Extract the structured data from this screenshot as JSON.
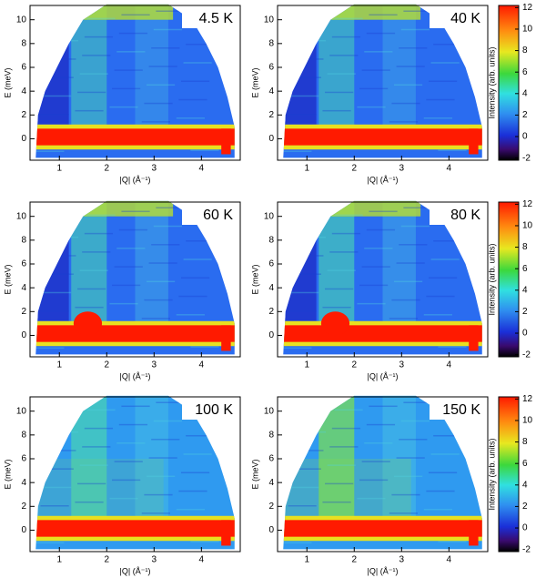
{
  "chart_data": [
    {
      "type": "heatmap",
      "title": "4.5 K",
      "xlabel": "|Q| (Å⁻¹)",
      "ylabel": "E (meV)",
      "xlim": [
        0.38,
        4.82
      ],
      "ylim": [
        -1.8,
        11.2
      ],
      "xticks": [
        1,
        2,
        3,
        4
      ],
      "yticks": [
        0,
        2,
        4,
        6,
        8,
        10
      ]
    },
    {
      "type": "heatmap",
      "title": "40 K",
      "xlabel": "|Q| (Å⁻¹)",
      "ylabel": "E (meV)",
      "xlim": [
        0.38,
        4.82
      ],
      "ylim": [
        -1.8,
        11.2
      ],
      "xticks": [
        1,
        2,
        3,
        4
      ],
      "yticks": [
        0,
        2,
        4,
        6,
        8,
        10
      ],
      "colorbar": {
        "label": "Intensity (arb. units)",
        "lim": [
          -2.2,
          12.2
        ],
        "ticks": [
          -2,
          0,
          2,
          4,
          6,
          8,
          10,
          12
        ]
      }
    },
    {
      "type": "heatmap",
      "title": "60 K",
      "xlabel": "|Q| (Å⁻¹)",
      "ylabel": "E (meV)",
      "xlim": [
        0.38,
        4.82
      ],
      "ylim": [
        -1.8,
        11.2
      ],
      "xticks": [
        1,
        2,
        3,
        4
      ],
      "yticks": [
        0,
        2,
        4,
        6,
        8,
        10
      ]
    },
    {
      "type": "heatmap",
      "title": "80 K",
      "xlabel": "|Q| (Å⁻¹)",
      "ylabel": "E (meV)",
      "xlim": [
        0.38,
        4.82
      ],
      "ylim": [
        -1.8,
        11.2
      ],
      "xticks": [
        1,
        2,
        3,
        4
      ],
      "yticks": [
        0,
        2,
        4,
        6,
        8,
        10
      ],
      "colorbar": {
        "label": "Intensity (arb. units)",
        "lim": [
          -2.2,
          12.2
        ],
        "ticks": [
          -2,
          0,
          2,
          4,
          6,
          8,
          10,
          12
        ]
      }
    },
    {
      "type": "heatmap",
      "title": "100 K",
      "xlabel": "|Q| (Å⁻¹)",
      "ylabel": "E (meV)",
      "xlim": [
        0.38,
        4.82
      ],
      "ylim": [
        -1.8,
        11.2
      ],
      "xticks": [
        1,
        2,
        3,
        4
      ],
      "yticks": [
        0,
        2,
        4,
        6,
        8,
        10
      ]
    },
    {
      "type": "heatmap",
      "title": "150 K",
      "xlabel": "|Q| (Å⁻¹)",
      "ylabel": "E (meV)",
      "xlim": [
        0.38,
        4.82
      ],
      "ylim": [
        -1.8,
        11.2
      ],
      "xticks": [
        1,
        2,
        3,
        4
      ],
      "yticks": [
        0,
        2,
        4,
        6,
        8,
        10
      ],
      "colorbar": {
        "label": "Intensity (arb. units)",
        "lim": [
          -2.2,
          12.2
        ],
        "ticks": [
          -2,
          0,
          2,
          4,
          6,
          8,
          10,
          12
        ]
      }
    }
  ]
}
